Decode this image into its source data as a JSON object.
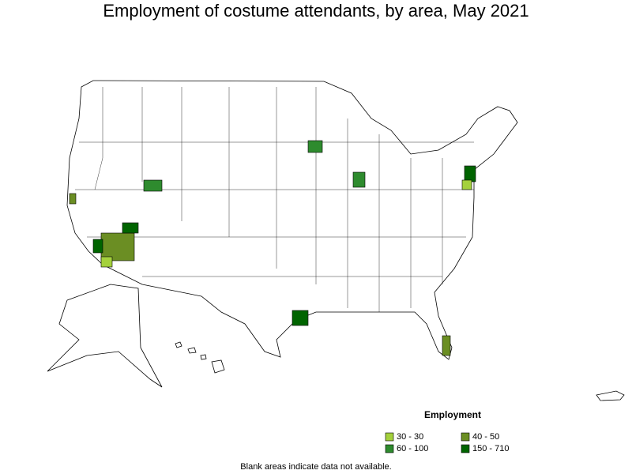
{
  "title": "Employment of costume attendants, by area, May 2021",
  "legend": {
    "title": "Employment",
    "items": [
      {
        "label": "30 - 30",
        "color": "#a4d13c"
      },
      {
        "label": "40 - 50",
        "color": "#6b8e23"
      },
      {
        "label": "60 - 100",
        "color": "#2e8b2e"
      },
      {
        "label": "150 - 710",
        "color": "#006400"
      }
    ]
  },
  "footnote": "Blank areas indicate data not available."
}
